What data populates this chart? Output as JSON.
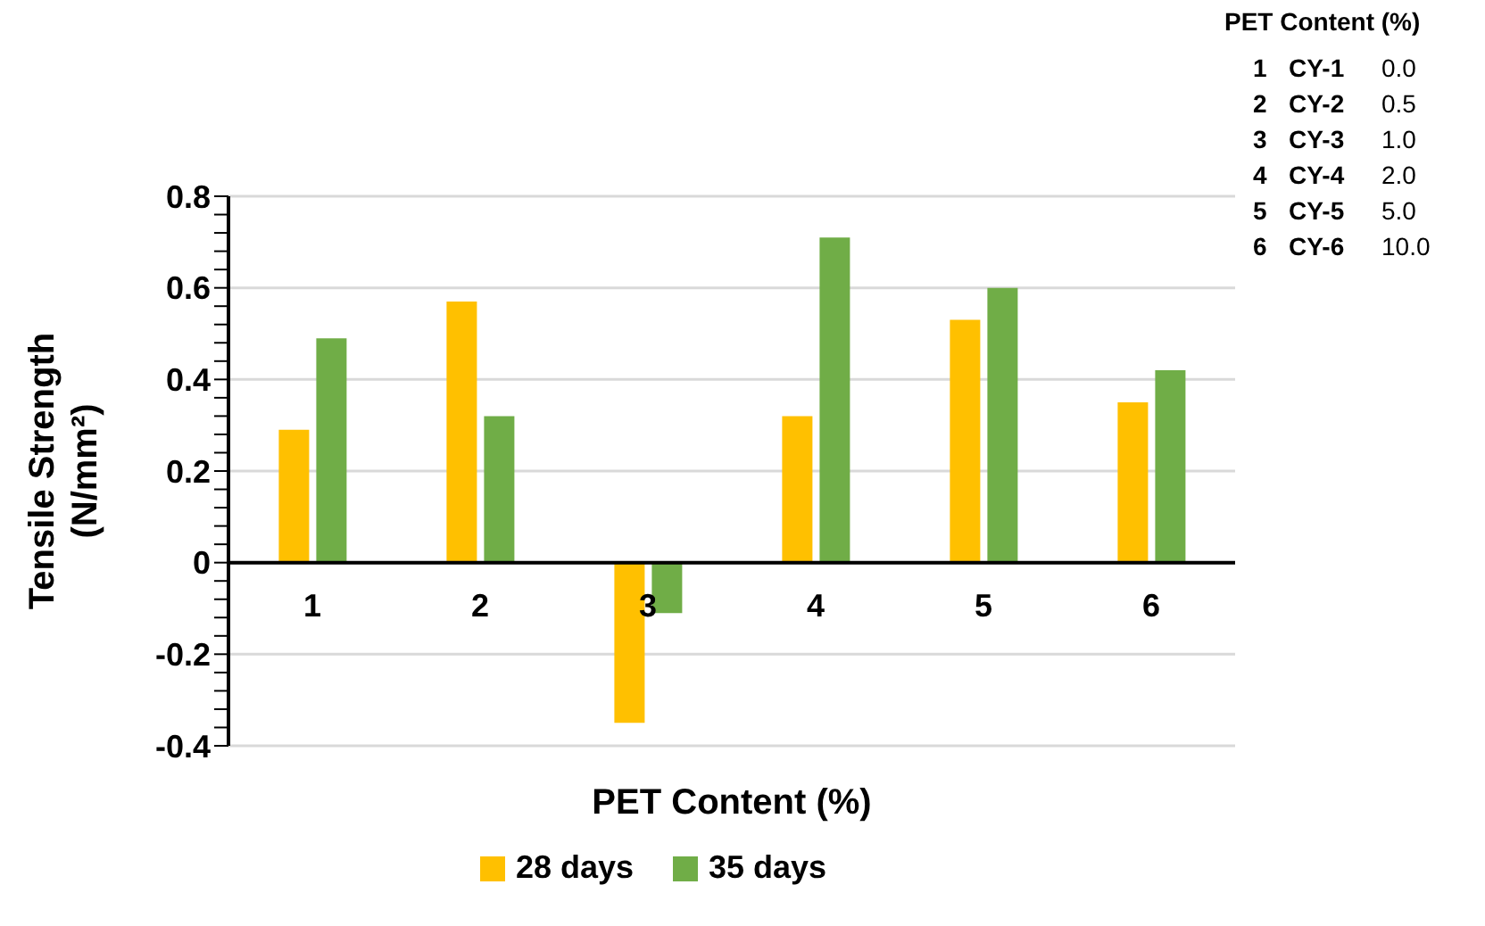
{
  "chart_data": {
    "type": "bar",
    "xlabel": "PET Content (%)",
    "ylabel": "Tensile Strength (N/mm²)",
    "categories": [
      "1",
      "2",
      "3",
      "4",
      "5",
      "6"
    ],
    "series": [
      {
        "name": "28 days",
        "color": "#ffc000",
        "values": [
          0.29,
          0.57,
          -0.35,
          0.32,
          0.53,
          0.35
        ]
      },
      {
        "name": "35 days",
        "color": "#70ad47",
        "values": [
          0.49,
          0.32,
          -0.11,
          0.71,
          0.6,
          0.42
        ]
      }
    ],
    "ylim": [
      -0.4,
      0.8
    ],
    "yticks": [
      -0.4,
      {
        "value": -0.36,
        "label": null
      },
      {
        "value": -0.32,
        "label": null
      },
      {
        "value": -0.28,
        "label": null
      },
      {
        "value": -0.24,
        "label": null
      },
      -0.2,
      {
        "value": -0.16,
        "label": null
      },
      {
        "value": -0.12,
        "label": null
      },
      {
        "value": -0.08,
        "label": null
      },
      {
        "value": -0.04,
        "label": null
      },
      0,
      {
        "value": 0.04,
        "label": null
      },
      {
        "value": 0.08,
        "label": null
      },
      {
        "value": 0.12,
        "label": null
      },
      {
        "value": 0.16,
        "label": null
      },
      0.2,
      {
        "value": 0.24,
        "label": null
      },
      {
        "value": 0.28,
        "label": null
      },
      {
        "value": 0.32,
        "label": null
      },
      {
        "value": 0.36,
        "label": null
      },
      0.4,
      {
        "value": 0.44,
        "label": null
      },
      {
        "value": 0.48,
        "label": null
      },
      {
        "value": 0.52,
        "label": null
      },
      {
        "value": 0.56,
        "label": null
      },
      0.6,
      {
        "value": 0.64,
        "label": null
      },
      {
        "value": 0.68,
        "label": null
      },
      {
        "value": 0.72,
        "label": null
      },
      {
        "value": 0.76,
        "label": null
      },
      0.8
    ],
    "grid": "y",
    "legend": "bottom",
    "annotations": [
      "PET Content (%)",
      "1 CY-1 0.0",
      "2 CY-2 0.5",
      "3 CY-3 1.0",
      "4 CY-4 2.0",
      "5 CY-5 5.0",
      "6 CY-6 10.0"
    ]
  }
}
